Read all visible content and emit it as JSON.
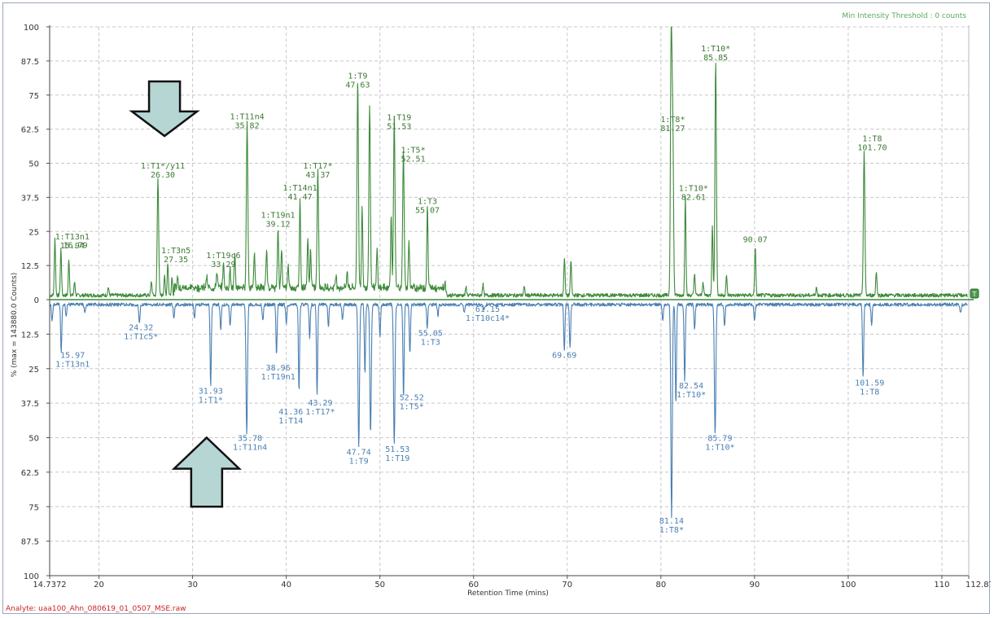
{
  "chart_data": {
    "type": "line",
    "xlabel": "Retention Time (mins)",
    "ylabel": "% (max = 143880.0 Counts)",
    "xlim": [
      14.7372,
      112.8714
    ],
    "x_tick_labels": [
      "14.7372",
      "20",
      "30",
      "40",
      "50",
      "60",
      "70",
      "80",
      "90",
      "100",
      "110",
      "112.8714"
    ],
    "x_ticks": [
      14.7372,
      20,
      30,
      40,
      50,
      60,
      70,
      80,
      90,
      100,
      110,
      112.8714
    ],
    "y_tick_labels_top": [
      "100",
      "87.5",
      "75",
      "62.5",
      "50",
      "37.5",
      "25",
      "12.5",
      "0"
    ],
    "y_ticks_top": [
      100,
      87.5,
      75,
      62.5,
      50,
      37.5,
      25,
      12.5,
      0
    ],
    "y_tick_labels_bottom": [
      "12.5",
      "25",
      "37.5",
      "50",
      "62.5",
      "75",
      "87.5",
      "100"
    ],
    "y_ticks_bottom": [
      12.5,
      25,
      37.5,
      50,
      62.5,
      75,
      87.5,
      100
    ],
    "grid": true,
    "threshold_note": "Min Intensity Threshold : 0 counts",
    "end_marker": "T",
    "analyte": "Analyte: uaa100_Ahn_080619_01_0507_MSE.raw",
    "series": [
      {
        "direction": "up",
        "color": "#3d8a3a",
        "peaks": [
          {
            "x": 15.3,
            "y": 21
          },
          {
            "x": 15.94,
            "y": 17
          },
          {
            "x": 16.79,
            "y": 13
          },
          {
            "x": 17.4,
            "y": 5
          },
          {
            "x": 21.0,
            "y": 3
          },
          {
            "x": 25.6,
            "y": 5
          },
          {
            "x": 26.3,
            "y": 43
          },
          {
            "x": 27.0,
            "y": 7
          },
          {
            "x": 27.35,
            "y": 12
          },
          {
            "x": 27.8,
            "y": 7
          },
          {
            "x": 28.4,
            "y": 4
          },
          {
            "x": 31.5,
            "y": 4
          },
          {
            "x": 32.6,
            "y": 6
          },
          {
            "x": 33.29,
            "y": 9
          },
          {
            "x": 34.0,
            "y": 7
          },
          {
            "x": 34.5,
            "y": 12
          },
          {
            "x": 35.82,
            "y": 61
          },
          {
            "x": 36.6,
            "y": 13
          },
          {
            "x": 37.9,
            "y": 14
          },
          {
            "x": 39.12,
            "y": 22
          },
          {
            "x": 39.5,
            "y": 15
          },
          {
            "x": 40.2,
            "y": 8
          },
          {
            "x": 41.47,
            "y": 32
          },
          {
            "x": 42.3,
            "y": 18
          },
          {
            "x": 42.6,
            "y": 14
          },
          {
            "x": 43.37,
            "y": 43
          },
          {
            "x": 45.3,
            "y": 5
          },
          {
            "x": 46.5,
            "y": 6
          },
          {
            "x": 47.63,
            "y": 76
          },
          {
            "x": 48.1,
            "y": 30
          },
          {
            "x": 48.9,
            "y": 67
          },
          {
            "x": 49.7,
            "y": 14
          },
          {
            "x": 51.2,
            "y": 27
          },
          {
            "x": 51.53,
            "y": 62
          },
          {
            "x": 52.51,
            "y": 50
          },
          {
            "x": 53.1,
            "y": 18
          },
          {
            "x": 55.07,
            "y": 30
          },
          {
            "x": 57.0,
            "y": 3
          },
          {
            "x": 59.2,
            "y": 3
          },
          {
            "x": 61.0,
            "y": 4
          },
          {
            "x": 65.4,
            "y": 3
          },
          {
            "x": 69.7,
            "y": 14
          },
          {
            "x": 70.4,
            "y": 13
          },
          {
            "x": 81.1,
            "y": 100
          },
          {
            "x": 81.27,
            "y": 60
          },
          {
            "x": 82.61,
            "y": 36
          },
          {
            "x": 83.6,
            "y": 8
          },
          {
            "x": 84.5,
            "y": 5
          },
          {
            "x": 85.5,
            "y": 26
          },
          {
            "x": 85.85,
            "y": 86
          },
          {
            "x": 87.0,
            "y": 7
          },
          {
            "x": 90.07,
            "y": 18
          },
          {
            "x": 96.6,
            "y": 3
          },
          {
            "x": 101.7,
            "y": 53
          },
          {
            "x": 103.0,
            "y": 9
          }
        ],
        "labels": [
          {
            "name": "1:T13n1",
            "value": "15.94",
            "x": 15.94
          },
          {
            "name": "",
            "value": "16.79",
            "x": 16.79
          },
          {
            "name": "1:T1*/y11",
            "value": "26.30",
            "x": 26.3
          },
          {
            "name": "1:T3n5",
            "value": "27.35",
            "x": 27.35
          },
          {
            "name": "1:T19c6",
            "value": "33.29",
            "x": 33.29
          },
          {
            "name": "1:T11n4",
            "value": "35.82",
            "x": 35.82
          },
          {
            "name": "1:T19n1",
            "value": "39.12",
            "x": 39.12
          },
          {
            "name": "1:T14n1",
            "value": "41.47",
            "x": 41.47
          },
          {
            "name": "1:T17*",
            "value": "43.37",
            "x": 43.37
          },
          {
            "name": "1:T9",
            "value": "47.63",
            "x": 47.63
          },
          {
            "name": "1:T19",
            "value": "51.53",
            "x": 51.53
          },
          {
            "name": "1:T5*",
            "value": "52.51",
            "x": 52.51
          },
          {
            "name": "1:T3",
            "value": "55.07",
            "x": 55.07
          },
          {
            "name": "1:T8*",
            "value": "81.27",
            "x": 81.27
          },
          {
            "name": "1:T10*",
            "value": "82.61",
            "x": 82.61
          },
          {
            "name": "1:T10*",
            "value": "85.85",
            "x": 85.85
          },
          {
            "name": "",
            "value": "90.07",
            "x": 90.07
          },
          {
            "name": "1:T8",
            "value": "101.70",
            "x": 101.7
          }
        ]
      },
      {
        "direction": "down",
        "color": "#4a7fb3",
        "peaks": [
          {
            "x": 15.0,
            "y": 6
          },
          {
            "x": 15.97,
            "y": 17
          },
          {
            "x": 16.5,
            "y": 4
          },
          {
            "x": 18.5,
            "y": 3
          },
          {
            "x": 24.32,
            "y": 7
          },
          {
            "x": 28.0,
            "y": 5
          },
          {
            "x": 30.2,
            "y": 5
          },
          {
            "x": 31.93,
            "y": 30
          },
          {
            "x": 33.0,
            "y": 9
          },
          {
            "x": 34.0,
            "y": 8
          },
          {
            "x": 35.78,
            "y": 47
          },
          {
            "x": 37.5,
            "y": 6
          },
          {
            "x": 38.96,
            "y": 18
          },
          {
            "x": 40.0,
            "y": 7
          },
          {
            "x": 41.36,
            "y": 31
          },
          {
            "x": 42.5,
            "y": 12
          },
          {
            "x": 43.29,
            "y": 33
          },
          {
            "x": 44.5,
            "y": 8
          },
          {
            "x": 46.0,
            "y": 6
          },
          {
            "x": 47.74,
            "y": 52
          },
          {
            "x": 48.4,
            "y": 25
          },
          {
            "x": 49.0,
            "y": 47
          },
          {
            "x": 50.0,
            "y": 12
          },
          {
            "x": 51.53,
            "y": 51
          },
          {
            "x": 52.52,
            "y": 34
          },
          {
            "x": 53.2,
            "y": 18
          },
          {
            "x": 55.05,
            "y": 9
          },
          {
            "x": 56.2,
            "y": 4
          },
          {
            "x": 59.0,
            "y": 3
          },
          {
            "x": 61.15,
            "y": 2
          },
          {
            "x": 69.69,
            "y": 17
          },
          {
            "x": 70.3,
            "y": 16
          },
          {
            "x": 80.2,
            "y": 6
          },
          {
            "x": 81.14,
            "y": 77
          },
          {
            "x": 81.6,
            "y": 36
          },
          {
            "x": 82.54,
            "y": 28
          },
          {
            "x": 83.6,
            "y": 9
          },
          {
            "x": 85.79,
            "y": 47
          },
          {
            "x": 86.8,
            "y": 8
          },
          {
            "x": 90.0,
            "y": 6
          },
          {
            "x": 101.59,
            "y": 27
          },
          {
            "x": 102.5,
            "y": 7
          },
          {
            "x": 112.0,
            "y": 3
          }
        ],
        "labels": [
          {
            "name": "1:T13n1",
            "value": "15.97",
            "x": 15.97
          },
          {
            "name": "1:T1c5*",
            "value": "24.32",
            "x": 24.32
          },
          {
            "name": "1:T1*",
            "value": "31.93",
            "x": 31.93
          },
          {
            "name": "1:T11n4",
            "value": "35.78",
            "x": 35.78
          },
          {
            "name": "1:T19n1",
            "value": "38.96",
            "x": 38.96
          },
          {
            "name": "1:T14",
            "value": "41.36",
            "x": 41.36
          },
          {
            "name": "1:T17*",
            "value": "43.29",
            "x": 43.29
          },
          {
            "name": "1:T9",
            "value": "47.74",
            "x": 47.74
          },
          {
            "name": "1:T19",
            "value": "51.53",
            "x": 51.53
          },
          {
            "name": "1:T5*",
            "value": "52.52",
            "x": 52.52
          },
          {
            "name": "1:T3",
            "value": "55.05",
            "x": 55.05
          },
          {
            "name": "1:T10c14*",
            "value": "61.15",
            "x": 61.15
          },
          {
            "name": "",
            "value": "69.69",
            "x": 69.69
          },
          {
            "name": "1:T8*",
            "value": "81.14",
            "x": 81.14
          },
          {
            "name": "1:T10*",
            "value": "82.54",
            "x": 82.54
          },
          {
            "name": "1:T10*",
            "value": "85.79",
            "x": 85.79
          },
          {
            "name": "1:T8",
            "value": "101.59",
            "x": 101.59
          }
        ]
      }
    ],
    "annotations": [
      {
        "type": "arrow-down",
        "x": 27.0,
        "y_top": 80,
        "y_bottom": 60,
        "label": ""
      },
      {
        "type": "arrow-up",
        "x": 31.5,
        "y_top": 50,
        "y_bottom": 75,
        "label": ""
      }
    ]
  }
}
